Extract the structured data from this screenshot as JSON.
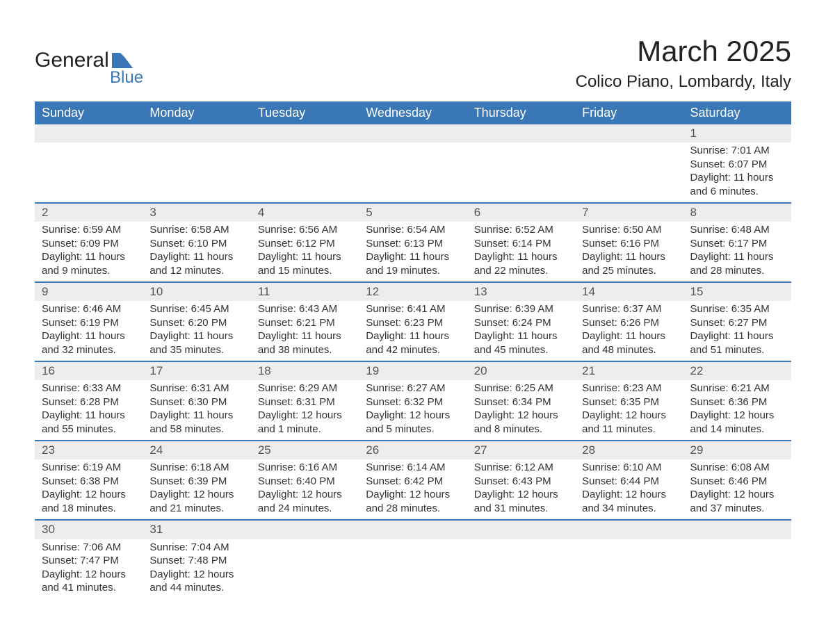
{
  "logo": {
    "text_main": "General",
    "text_sub": "Blue",
    "flag_color": "#3a77b6"
  },
  "title": {
    "month": "March 2025",
    "location": "Colico Piano, Lombardy, Italy",
    "title_fontsize": 42,
    "location_fontsize": 24
  },
  "colors": {
    "header_bg": "#3a77b6",
    "header_text": "#ffffff",
    "daynum_bg": "#ededed",
    "row_divider": "#3a77b6",
    "body_text": "#333333",
    "page_bg": "#ffffff"
  },
  "weekdays": [
    "Sunday",
    "Monday",
    "Tuesday",
    "Wednesday",
    "Thursday",
    "Friday",
    "Saturday"
  ],
  "weeks": [
    [
      null,
      null,
      null,
      null,
      null,
      null,
      {
        "day": "1",
        "sunrise": "Sunrise: 7:01 AM",
        "sunset": "Sunset: 6:07 PM",
        "dl1": "Daylight: 11 hours",
        "dl2": "and 6 minutes."
      }
    ],
    [
      {
        "day": "2",
        "sunrise": "Sunrise: 6:59 AM",
        "sunset": "Sunset: 6:09 PM",
        "dl1": "Daylight: 11 hours",
        "dl2": "and 9 minutes."
      },
      {
        "day": "3",
        "sunrise": "Sunrise: 6:58 AM",
        "sunset": "Sunset: 6:10 PM",
        "dl1": "Daylight: 11 hours",
        "dl2": "and 12 minutes."
      },
      {
        "day": "4",
        "sunrise": "Sunrise: 6:56 AM",
        "sunset": "Sunset: 6:12 PM",
        "dl1": "Daylight: 11 hours",
        "dl2": "and 15 minutes."
      },
      {
        "day": "5",
        "sunrise": "Sunrise: 6:54 AM",
        "sunset": "Sunset: 6:13 PM",
        "dl1": "Daylight: 11 hours",
        "dl2": "and 19 minutes."
      },
      {
        "day": "6",
        "sunrise": "Sunrise: 6:52 AM",
        "sunset": "Sunset: 6:14 PM",
        "dl1": "Daylight: 11 hours",
        "dl2": "and 22 minutes."
      },
      {
        "day": "7",
        "sunrise": "Sunrise: 6:50 AM",
        "sunset": "Sunset: 6:16 PM",
        "dl1": "Daylight: 11 hours",
        "dl2": "and 25 minutes."
      },
      {
        "day": "8",
        "sunrise": "Sunrise: 6:48 AM",
        "sunset": "Sunset: 6:17 PM",
        "dl1": "Daylight: 11 hours",
        "dl2": "and 28 minutes."
      }
    ],
    [
      {
        "day": "9",
        "sunrise": "Sunrise: 6:46 AM",
        "sunset": "Sunset: 6:19 PM",
        "dl1": "Daylight: 11 hours",
        "dl2": "and 32 minutes."
      },
      {
        "day": "10",
        "sunrise": "Sunrise: 6:45 AM",
        "sunset": "Sunset: 6:20 PM",
        "dl1": "Daylight: 11 hours",
        "dl2": "and 35 minutes."
      },
      {
        "day": "11",
        "sunrise": "Sunrise: 6:43 AM",
        "sunset": "Sunset: 6:21 PM",
        "dl1": "Daylight: 11 hours",
        "dl2": "and 38 minutes."
      },
      {
        "day": "12",
        "sunrise": "Sunrise: 6:41 AM",
        "sunset": "Sunset: 6:23 PM",
        "dl1": "Daylight: 11 hours",
        "dl2": "and 42 minutes."
      },
      {
        "day": "13",
        "sunrise": "Sunrise: 6:39 AM",
        "sunset": "Sunset: 6:24 PM",
        "dl1": "Daylight: 11 hours",
        "dl2": "and 45 minutes."
      },
      {
        "day": "14",
        "sunrise": "Sunrise: 6:37 AM",
        "sunset": "Sunset: 6:26 PM",
        "dl1": "Daylight: 11 hours",
        "dl2": "and 48 minutes."
      },
      {
        "day": "15",
        "sunrise": "Sunrise: 6:35 AM",
        "sunset": "Sunset: 6:27 PM",
        "dl1": "Daylight: 11 hours",
        "dl2": "and 51 minutes."
      }
    ],
    [
      {
        "day": "16",
        "sunrise": "Sunrise: 6:33 AM",
        "sunset": "Sunset: 6:28 PM",
        "dl1": "Daylight: 11 hours",
        "dl2": "and 55 minutes."
      },
      {
        "day": "17",
        "sunrise": "Sunrise: 6:31 AM",
        "sunset": "Sunset: 6:30 PM",
        "dl1": "Daylight: 11 hours",
        "dl2": "and 58 minutes."
      },
      {
        "day": "18",
        "sunrise": "Sunrise: 6:29 AM",
        "sunset": "Sunset: 6:31 PM",
        "dl1": "Daylight: 12 hours",
        "dl2": "and 1 minute."
      },
      {
        "day": "19",
        "sunrise": "Sunrise: 6:27 AM",
        "sunset": "Sunset: 6:32 PM",
        "dl1": "Daylight: 12 hours",
        "dl2": "and 5 minutes."
      },
      {
        "day": "20",
        "sunrise": "Sunrise: 6:25 AM",
        "sunset": "Sunset: 6:34 PM",
        "dl1": "Daylight: 12 hours",
        "dl2": "and 8 minutes."
      },
      {
        "day": "21",
        "sunrise": "Sunrise: 6:23 AM",
        "sunset": "Sunset: 6:35 PM",
        "dl1": "Daylight: 12 hours",
        "dl2": "and 11 minutes."
      },
      {
        "day": "22",
        "sunrise": "Sunrise: 6:21 AM",
        "sunset": "Sunset: 6:36 PM",
        "dl1": "Daylight: 12 hours",
        "dl2": "and 14 minutes."
      }
    ],
    [
      {
        "day": "23",
        "sunrise": "Sunrise: 6:19 AM",
        "sunset": "Sunset: 6:38 PM",
        "dl1": "Daylight: 12 hours",
        "dl2": "and 18 minutes."
      },
      {
        "day": "24",
        "sunrise": "Sunrise: 6:18 AM",
        "sunset": "Sunset: 6:39 PM",
        "dl1": "Daylight: 12 hours",
        "dl2": "and 21 minutes."
      },
      {
        "day": "25",
        "sunrise": "Sunrise: 6:16 AM",
        "sunset": "Sunset: 6:40 PM",
        "dl1": "Daylight: 12 hours",
        "dl2": "and 24 minutes."
      },
      {
        "day": "26",
        "sunrise": "Sunrise: 6:14 AM",
        "sunset": "Sunset: 6:42 PM",
        "dl1": "Daylight: 12 hours",
        "dl2": "and 28 minutes."
      },
      {
        "day": "27",
        "sunrise": "Sunrise: 6:12 AM",
        "sunset": "Sunset: 6:43 PM",
        "dl1": "Daylight: 12 hours",
        "dl2": "and 31 minutes."
      },
      {
        "day": "28",
        "sunrise": "Sunrise: 6:10 AM",
        "sunset": "Sunset: 6:44 PM",
        "dl1": "Daylight: 12 hours",
        "dl2": "and 34 minutes."
      },
      {
        "day": "29",
        "sunrise": "Sunrise: 6:08 AM",
        "sunset": "Sunset: 6:46 PM",
        "dl1": "Daylight: 12 hours",
        "dl2": "and 37 minutes."
      }
    ],
    [
      {
        "day": "30",
        "sunrise": "Sunrise: 7:06 AM",
        "sunset": "Sunset: 7:47 PM",
        "dl1": "Daylight: 12 hours",
        "dl2": "and 41 minutes."
      },
      {
        "day": "31",
        "sunrise": "Sunrise: 7:04 AM",
        "sunset": "Sunset: 7:48 PM",
        "dl1": "Daylight: 12 hours",
        "dl2": "and 44 minutes."
      },
      null,
      null,
      null,
      null,
      null
    ]
  ]
}
